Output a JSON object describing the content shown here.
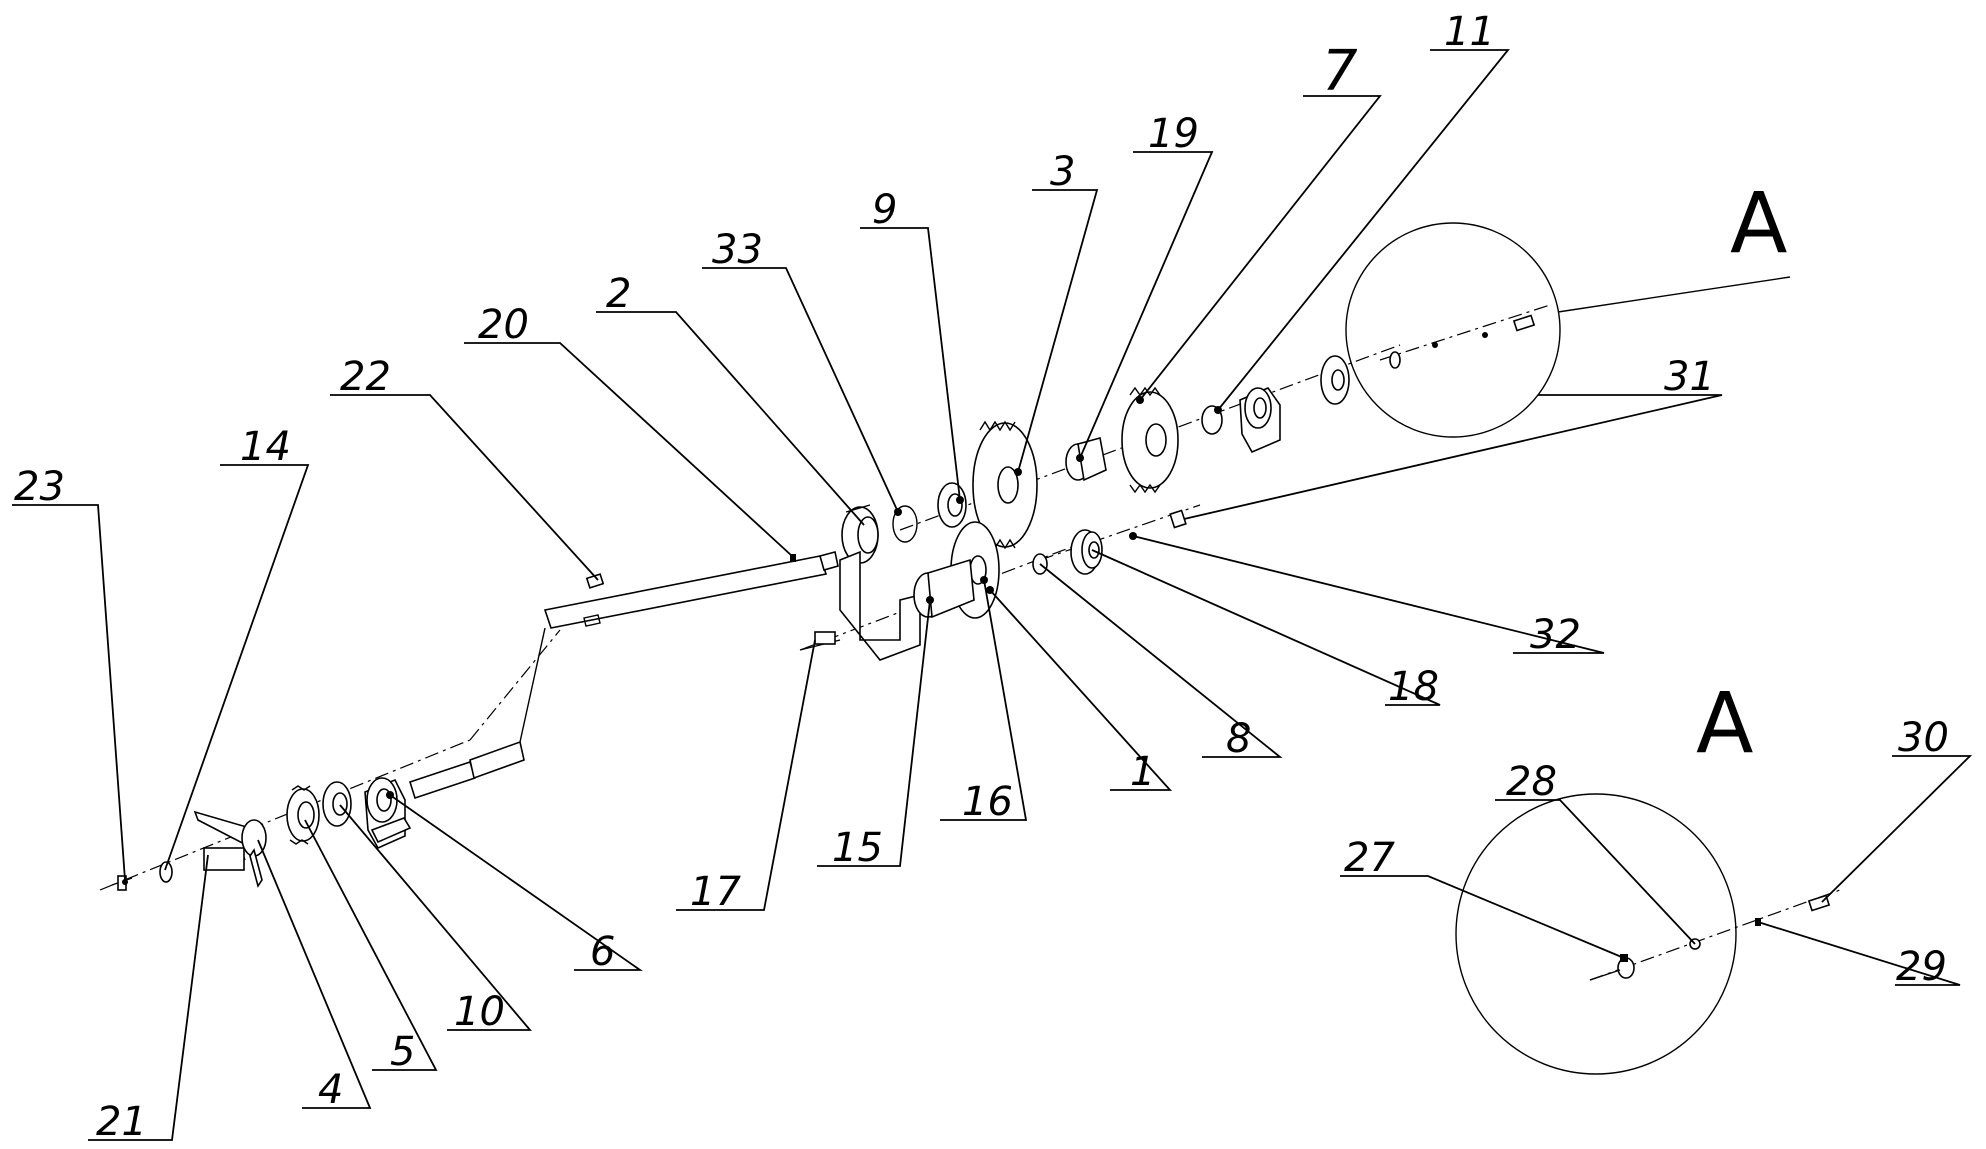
{
  "labels": {
    "p1": "1",
    "p2": "2",
    "p3": "3",
    "p4": "4",
    "p5": "5",
    "p6": "6",
    "p7": "7",
    "p8": "8",
    "p9": "9",
    "p10": "10",
    "p11": "11",
    "p14": "14",
    "p15": "15",
    "p16": "16",
    "p17": "17",
    "p18": "18",
    "p19": "19",
    "p20": "20",
    "p21": "21",
    "p22": "22",
    "p23": "23",
    "p27": "27",
    "p28": "28",
    "p29": "29",
    "p30": "30",
    "p31": "31",
    "p32": "32",
    "p33": "33"
  },
  "detail": {
    "callout": "A",
    "view": "A"
  }
}
